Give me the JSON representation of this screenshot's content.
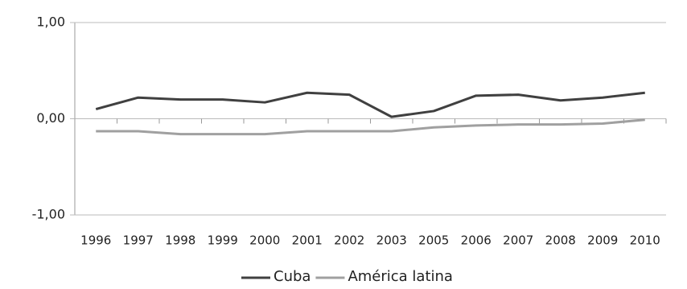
{
  "chart_data": {
    "type": "line",
    "categories": [
      "1996",
      "1997",
      "1998",
      "1999",
      "2000",
      "2001",
      "2002",
      "2003",
      "2005",
      "2006",
      "2007",
      "2008",
      "2009",
      "2010"
    ],
    "series": [
      {
        "name": "Cuba",
        "color": "#404040",
        "values": [
          0.1,
          0.22,
          0.2,
          0.2,
          0.17,
          0.27,
          0.25,
          0.02,
          0.08,
          0.24,
          0.25,
          0.19,
          0.22,
          0.27
        ]
      },
      {
        "name": "América latina",
        "color": "#a0a0a0",
        "values": [
          -0.13,
          -0.13,
          -0.16,
          -0.16,
          -0.16,
          -0.13,
          -0.13,
          -0.13,
          -0.09,
          -0.07,
          -0.06,
          -0.06,
          -0.05,
          -0.01
        ]
      }
    ],
    "ylim": [
      -1,
      1
    ],
    "yticks": [
      {
        "value": -1,
        "label": "-1,00"
      },
      {
        "value": 0,
        "label": "0,00"
      },
      {
        "value": 1,
        "label": "1,00"
      }
    ],
    "grid": true,
    "legend": "bottom"
  }
}
